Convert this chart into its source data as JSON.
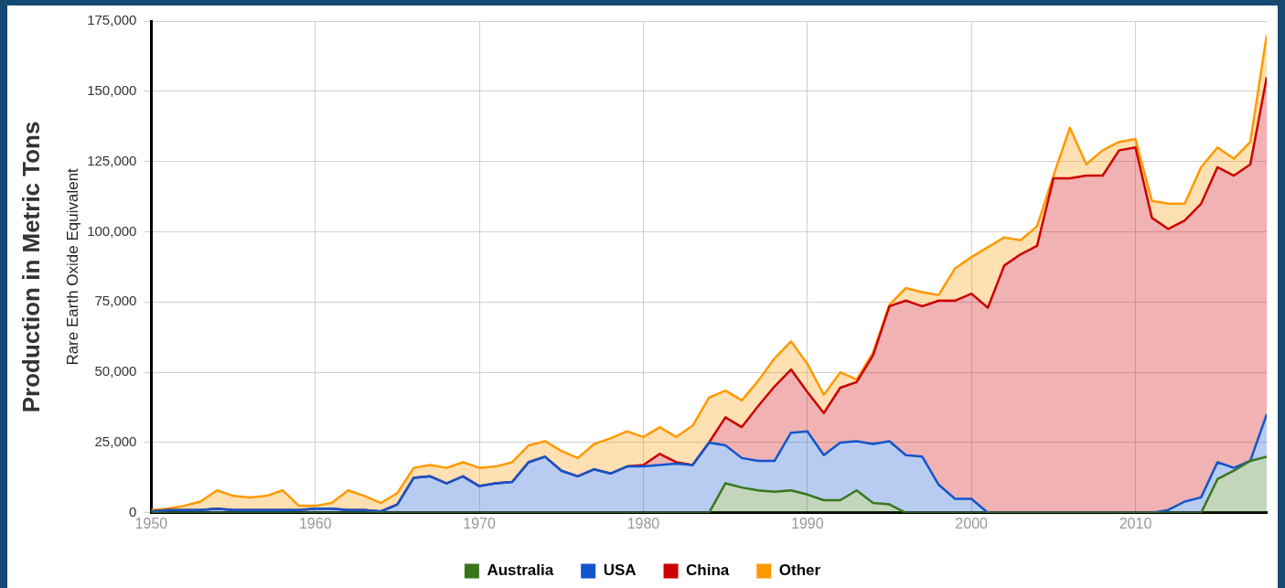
{
  "chart_data": {
    "type": "area",
    "stacked": true,
    "ylabel": "Production in Metric Tons",
    "subtitle": "Rare Earth Oxide Equivalent",
    "x": [
      1950,
      1951,
      1952,
      1953,
      1954,
      1955,
      1956,
      1957,
      1958,
      1959,
      1960,
      1961,
      1962,
      1963,
      1964,
      1965,
      1966,
      1967,
      1968,
      1969,
      1970,
      1971,
      1972,
      1973,
      1974,
      1975,
      1976,
      1977,
      1978,
      1979,
      1980,
      1981,
      1982,
      1983,
      1984,
      1985,
      1986,
      1987,
      1988,
      1989,
      1990,
      1991,
      1992,
      1993,
      1994,
      1995,
      1996,
      1997,
      1998,
      1999,
      2000,
      2001,
      2002,
      2003,
      2004,
      2005,
      2006,
      2007,
      2008,
      2009,
      2010,
      2011,
      2012,
      2013,
      2014,
      2015,
      2016,
      2017,
      2018
    ],
    "series": [
      {
        "name": "Australia",
        "color": "#38761d",
        "values": [
          0,
          0,
          0,
          0,
          0,
          0,
          0,
          0,
          0,
          0,
          0,
          0,
          0,
          0,
          0,
          0,
          0,
          0,
          0,
          0,
          0,
          0,
          0,
          0,
          0,
          0,
          0,
          0,
          0,
          0,
          0,
          0,
          0,
          0,
          0,
          10500,
          9000,
          8000,
          7500,
          8000,
          6500,
          4500,
          4500,
          8000,
          3500,
          3000,
          0,
          0,
          0,
          0,
          0,
          0,
          0,
          0,
          0,
          0,
          0,
          0,
          0,
          0,
          0,
          0,
          0,
          0,
          0,
          12000,
          15000,
          18500,
          20000
        ]
      },
      {
        "name": "USA",
        "color": "#1155cc",
        "values": [
          500,
          1000,
          1000,
          1000,
          1500,
          1000,
          1000,
          1000,
          1000,
          1000,
          1500,
          1500,
          1000,
          1000,
          500,
          3000,
          12500,
          13000,
          10500,
          13000,
          9500,
          10500,
          11000,
          18000,
          20000,
          15000,
          13000,
          15500,
          14000,
          16500,
          16500,
          17000,
          17500,
          17000,
          25000,
          13500,
          10500,
          10500,
          11000,
          20500,
          22500,
          16000,
          20500,
          17500,
          21000,
          22500,
          20500,
          20000,
          10000,
          5000,
          5000,
          0,
          0,
          0,
          0,
          0,
          0,
          0,
          0,
          0,
          0,
          0,
          1000,
          4000,
          5500,
          6000,
          1000,
          0,
          15000
        ]
      },
      {
        "name": "China",
        "color": "#cc0000",
        "values": [
          0,
          0,
          0,
          0,
          0,
          0,
          0,
          0,
          0,
          0,
          0,
          0,
          0,
          0,
          0,
          0,
          0,
          0,
          0,
          0,
          0,
          0,
          0,
          0,
          0,
          0,
          0,
          0,
          0,
          0,
          500,
          4000,
          500,
          0,
          0,
          10000,
          11000,
          19500,
          26500,
          22500,
          14000,
          15000,
          19500,
          21000,
          31500,
          48000,
          55000,
          53500,
          65500,
          70500,
          73000,
          73000,
          88000,
          92000,
          95000,
          119000,
          119000,
          120000,
          120000,
          129000,
          130000,
          105000,
          100000,
          100000,
          104500,
          105000,
          104000,
          105500,
          120000
        ]
      },
      {
        "name": "Other",
        "color": "#ff9900",
        "values": [
          500,
          500,
          1500,
          3000,
          6500,
          5000,
          4500,
          5000,
          7000,
          1500,
          1000,
          2000,
          7000,
          5000,
          3000,
          4000,
          3500,
          4000,
          5500,
          5000,
          6500,
          6000,
          7000,
          6000,
          5500,
          7000,
          6500,
          9000,
          12500,
          12500,
          10000,
          9500,
          9000,
          14000,
          16000,
          9500,
          9500,
          9000,
          10000,
          10000,
          10000,
          6500,
          5500,
          1000,
          1000,
          500,
          4500,
          5000,
          2000,
          11500,
          13000,
          21500,
          10000,
          5000,
          7000,
          1000,
          18000,
          4000,
          9000,
          3000,
          3000,
          6000,
          9000,
          6000,
          13000,
          7000,
          6000,
          8000,
          15000
        ]
      }
    ],
    "xlim": [
      1950,
      2018
    ],
    "xticks": [
      1950,
      1960,
      1970,
      1980,
      1990,
      2000,
      2010
    ],
    "ylim": [
      0,
      175000
    ],
    "yticks": [
      {
        "value": 0,
        "label": "0"
      },
      {
        "value": 25000,
        "label": "25,000"
      },
      {
        "value": 50000,
        "label": "50,000"
      },
      {
        "value": 75000,
        "label": "75,000"
      },
      {
        "value": 100000,
        "label": "100,000"
      },
      {
        "value": 125000,
        "label": "125,000"
      },
      {
        "value": 150000,
        "label": "150,000"
      },
      {
        "value": 175000,
        "label": "175,000"
      }
    ],
    "grid": true,
    "legend": "bottom"
  }
}
